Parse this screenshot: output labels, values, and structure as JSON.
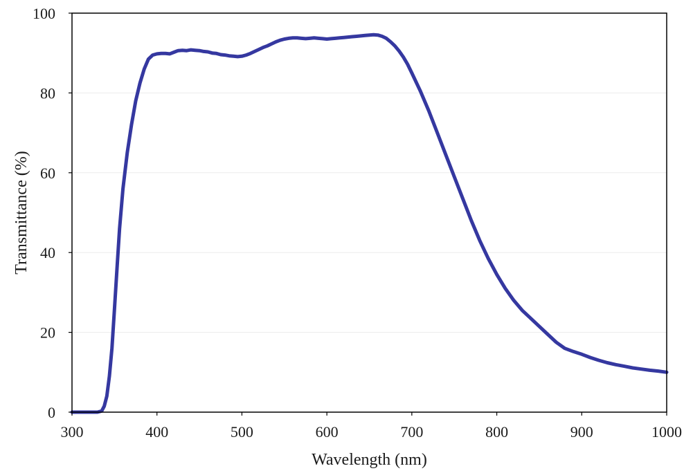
{
  "chart_data": {
    "type": "line",
    "title": "",
    "xlabel": "Wavelength (nm)",
    "ylabel": "Transmittance (%)",
    "xlim": [
      300,
      1000
    ],
    "ylim": [
      0,
      100
    ],
    "xticks": [
      300,
      400,
      500,
      600,
      700,
      800,
      900,
      1000
    ],
    "yticks": [
      0,
      20,
      40,
      60,
      80,
      100
    ],
    "grid": true,
    "legend": "none",
    "colors": {
      "line": "#3538a0",
      "grid": "#ececec",
      "axis": "#000000"
    },
    "series": [
      {
        "x": [
          300,
          320,
          330,
          335,
          338,
          341,
          344,
          347,
          350,
          353,
          356,
          360,
          365,
          370,
          375,
          380,
          385,
          390,
          395,
          400,
          405,
          410,
          415,
          420,
          425,
          430,
          435,
          440,
          445,
          450,
          455,
          460,
          465,
          470,
          475,
          480,
          485,
          490,
          495,
          500,
          505,
          510,
          515,
          520,
          525,
          530,
          535,
          540,
          545,
          550,
          555,
          560,
          565,
          570,
          575,
          580,
          585,
          590,
          595,
          600,
          605,
          610,
          615,
          620,
          625,
          630,
          635,
          640,
          645,
          650,
          655,
          660,
          665,
          670,
          675,
          680,
          685,
          690,
          695,
          700,
          710,
          720,
          730,
          740,
          750,
          760,
          770,
          780,
          790,
          800,
          810,
          820,
          830,
          840,
          850,
          860,
          870,
          880,
          890,
          900,
          910,
          920,
          930,
          940,
          950,
          960,
          970,
          980,
          990,
          1000
        ],
        "y": [
          0,
          0,
          0,
          0.3,
          1.5,
          4,
          9,
          16,
          26,
          36,
          46,
          56,
          65,
          72,
          78,
          82.5,
          86,
          88.5,
          89.5,
          89.8,
          89.9,
          89.9,
          89.8,
          90.2,
          90.6,
          90.7,
          90.6,
          90.8,
          90.7,
          90.6,
          90.4,
          90.3,
          90.0,
          89.9,
          89.6,
          89.5,
          89.3,
          89.2,
          89.1,
          89.2,
          89.5,
          89.9,
          90.4,
          90.9,
          91.4,
          91.8,
          92.3,
          92.8,
          93.2,
          93.5,
          93.7,
          93.8,
          93.8,
          93.7,
          93.6,
          93.7,
          93.8,
          93.7,
          93.6,
          93.5,
          93.6,
          93.7,
          93.8,
          93.9,
          94.0,
          94.1,
          94.2,
          94.3,
          94.4,
          94.5,
          94.6,
          94.5,
          94.2,
          93.7,
          92.8,
          91.8,
          90.5,
          89.0,
          87.2,
          85.0,
          80.5,
          75.5,
          70.0,
          64.5,
          59.0,
          53.5,
          48.0,
          43.0,
          38.5,
          34.5,
          31.0,
          28.0,
          25.5,
          23.5,
          21.5,
          19.5,
          17.5,
          16.0,
          15.2,
          14.5,
          13.7,
          13.0,
          12.4,
          11.9,
          11.5,
          11.1,
          10.8,
          10.5,
          10.3,
          10.0
        ]
      }
    ]
  }
}
